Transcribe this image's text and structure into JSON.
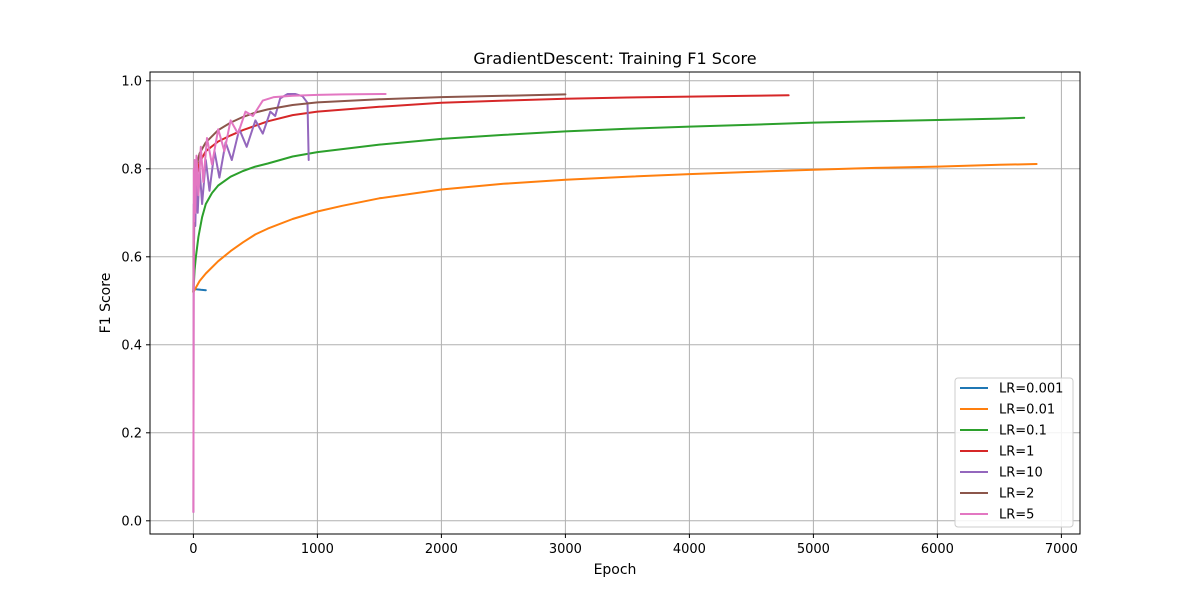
{
  "chart_data": {
    "type": "line",
    "title": "GradientDescent: Training F1 Score",
    "xlabel": "Epoch",
    "ylabel": "F1 Score",
    "xlim": [
      -350,
      7150
    ],
    "ylim": [
      -0.03,
      1.02
    ],
    "xticks": [
      0,
      1000,
      2000,
      3000,
      4000,
      5000,
      6000,
      7000
    ],
    "yticks": [
      0.0,
      0.2,
      0.4,
      0.6,
      0.8,
      1.0
    ],
    "xtick_labels": [
      "0",
      "1000",
      "2000",
      "3000",
      "4000",
      "5000",
      "6000",
      "7000"
    ],
    "ytick_labels": [
      "0.0",
      "0.2",
      "0.4",
      "0.6",
      "0.8",
      "1.0"
    ],
    "grid": true,
    "legend_position": "lower-right",
    "series": [
      {
        "name": "LR=0.001",
        "color": "#1f77b4",
        "points": [
          [
            0,
            0.52
          ],
          [
            10,
            0.527
          ],
          [
            30,
            0.526
          ],
          [
            60,
            0.525
          ],
          [
            100,
            0.524
          ]
        ]
      },
      {
        "name": "LR=0.01",
        "color": "#ff7f0e",
        "points": [
          [
            0,
            0.52
          ],
          [
            20,
            0.53
          ],
          [
            50,
            0.545
          ],
          [
            100,
            0.562
          ],
          [
            200,
            0.59
          ],
          [
            300,
            0.613
          ],
          [
            400,
            0.633
          ],
          [
            500,
            0.651
          ],
          [
            600,
            0.664
          ],
          [
            800,
            0.686
          ],
          [
            1000,
            0.703
          ],
          [
            1200,
            0.716
          ],
          [
            1500,
            0.733
          ],
          [
            2000,
            0.753
          ],
          [
            2500,
            0.766
          ],
          [
            3000,
            0.775
          ],
          [
            3500,
            0.782
          ],
          [
            4000,
            0.788
          ],
          [
            4500,
            0.793
          ],
          [
            5000,
            0.798
          ],
          [
            5500,
            0.802
          ],
          [
            6000,
            0.805
          ],
          [
            6500,
            0.809
          ],
          [
            6800,
            0.811
          ]
        ]
      },
      {
        "name": "LR=0.1",
        "color": "#2ca02c",
        "points": [
          [
            0,
            0.52
          ],
          [
            10,
            0.57
          ],
          [
            20,
            0.6
          ],
          [
            40,
            0.645
          ],
          [
            70,
            0.69
          ],
          [
            100,
            0.72
          ],
          [
            150,
            0.745
          ],
          [
            200,
            0.762
          ],
          [
            300,
            0.782
          ],
          [
            400,
            0.795
          ],
          [
            500,
            0.805
          ],
          [
            600,
            0.812
          ],
          [
            800,
            0.828
          ],
          [
            1000,
            0.838
          ],
          [
            1500,
            0.855
          ],
          [
            2000,
            0.868
          ],
          [
            2500,
            0.877
          ],
          [
            3000,
            0.885
          ],
          [
            3500,
            0.891
          ],
          [
            4000,
            0.896
          ],
          [
            4500,
            0.9
          ],
          [
            5000,
            0.905
          ],
          [
            5500,
            0.908
          ],
          [
            6000,
            0.911
          ],
          [
            6500,
            0.914
          ],
          [
            6700,
            0.916
          ]
        ]
      },
      {
        "name": "LR=1",
        "color": "#d62728",
        "points": [
          [
            0,
            0.52
          ],
          [
            5,
            0.7
          ],
          [
            20,
            0.78
          ],
          [
            50,
            0.815
          ],
          [
            100,
            0.84
          ],
          [
            200,
            0.862
          ],
          [
            300,
            0.876
          ],
          [
            400,
            0.888
          ],
          [
            500,
            0.898
          ],
          [
            600,
            0.908
          ],
          [
            800,
            0.922
          ],
          [
            1000,
            0.93
          ],
          [
            1500,
            0.941
          ],
          [
            2000,
            0.95
          ],
          [
            2500,
            0.955
          ],
          [
            3000,
            0.959
          ],
          [
            3500,
            0.962
          ],
          [
            4000,
            0.964
          ],
          [
            4500,
            0.966
          ],
          [
            4800,
            0.967
          ]
        ]
      },
      {
        "name": "LR=10",
        "color": "#9467bd",
        "points": [
          [
            0,
            0.02
          ],
          [
            3,
            0.72
          ],
          [
            6,
            0.64
          ],
          [
            10,
            0.76
          ],
          [
            15,
            0.67
          ],
          [
            25,
            0.79
          ],
          [
            35,
            0.7
          ],
          [
            50,
            0.8
          ],
          [
            70,
            0.72
          ],
          [
            100,
            0.82
          ],
          [
            130,
            0.75
          ],
          [
            170,
            0.84
          ],
          [
            210,
            0.78
          ],
          [
            260,
            0.86
          ],
          [
            310,
            0.82
          ],
          [
            370,
            0.89
          ],
          [
            430,
            0.85
          ],
          [
            500,
            0.91
          ],
          [
            560,
            0.88
          ],
          [
            620,
            0.93
          ],
          [
            660,
            0.92
          ],
          [
            700,
            0.96
          ],
          [
            760,
            0.97
          ],
          [
            820,
            0.97
          ],
          [
            880,
            0.965
          ],
          [
            920,
            0.95
          ],
          [
            930,
            0.82
          ]
        ]
      },
      {
        "name": "LR=2",
        "color": "#8c564b",
        "points": [
          [
            0,
            0.52
          ],
          [
            5,
            0.72
          ],
          [
            20,
            0.8
          ],
          [
            50,
            0.835
          ],
          [
            100,
            0.86
          ],
          [
            200,
            0.888
          ],
          [
            300,
            0.905
          ],
          [
            400,
            0.918
          ],
          [
            500,
            0.928
          ],
          [
            600,
            0.935
          ],
          [
            800,
            0.945
          ],
          [
            1000,
            0.951
          ],
          [
            1500,
            0.958
          ],
          [
            2000,
            0.963
          ],
          [
            2500,
            0.966
          ],
          [
            3000,
            0.969
          ]
        ]
      },
      {
        "name": "LR=5",
        "color": "#e377c2",
        "points": [
          [
            0,
            0.02
          ],
          [
            3,
            0.8
          ],
          [
            6,
            0.68
          ],
          [
            10,
            0.82
          ],
          [
            15,
            0.7
          ],
          [
            25,
            0.83
          ],
          [
            40,
            0.74
          ],
          [
            60,
            0.85
          ],
          [
            80,
            0.77
          ],
          [
            110,
            0.87
          ],
          [
            150,
            0.81
          ],
          [
            200,
            0.89
          ],
          [
            250,
            0.84
          ],
          [
            300,
            0.91
          ],
          [
            360,
            0.88
          ],
          [
            420,
            0.93
          ],
          [
            480,
            0.92
          ],
          [
            560,
            0.955
          ],
          [
            650,
            0.963
          ],
          [
            800,
            0.966
          ],
          [
            1000,
            0.968
          ],
          [
            1200,
            0.969
          ],
          [
            1550,
            0.97
          ]
        ]
      }
    ]
  }
}
